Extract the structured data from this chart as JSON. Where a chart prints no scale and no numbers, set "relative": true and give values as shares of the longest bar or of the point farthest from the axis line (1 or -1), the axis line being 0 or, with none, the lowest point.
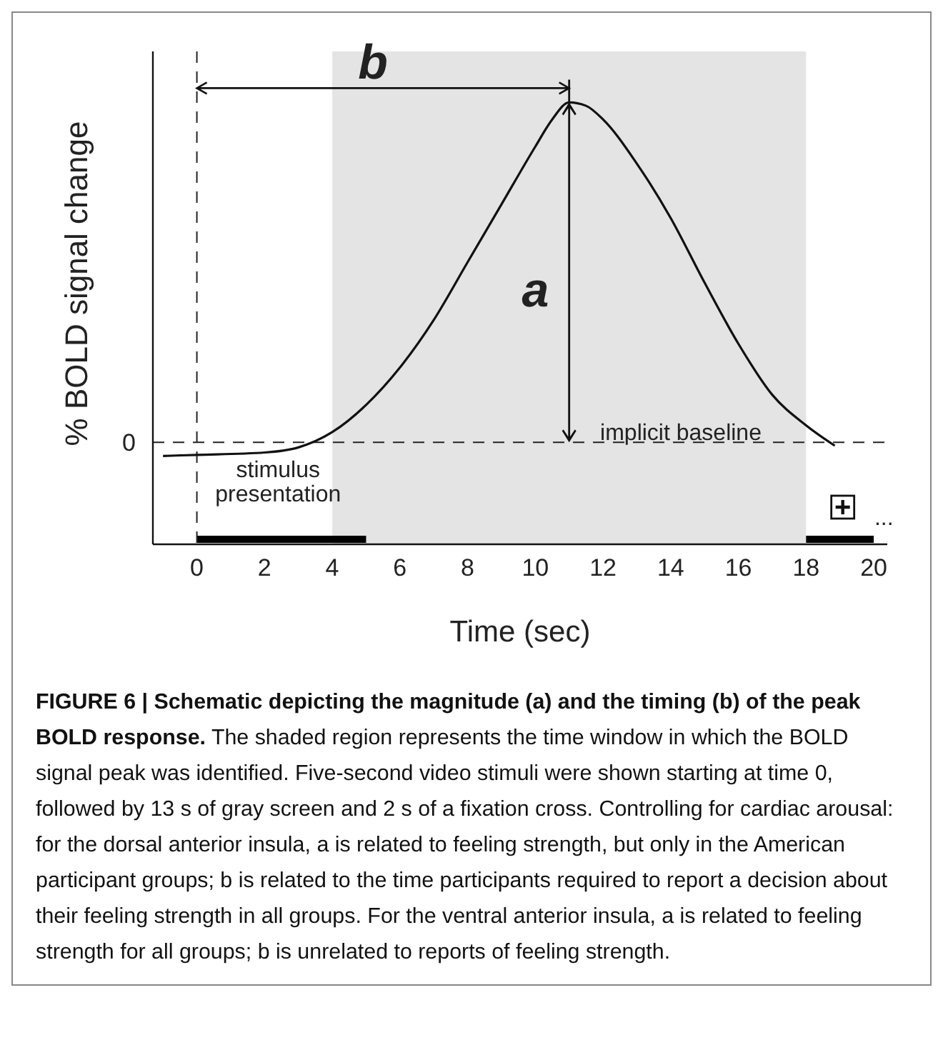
{
  "chart_data": {
    "type": "line",
    "relative": true,
    "title": "FIGURE 6 | Schematic depicting the magnitude (a) and the timing (b) of the peak BOLD response.",
    "xlabel": "Time (sec)",
    "ylabel": "% BOLD signal change",
    "x": [
      -1,
      0,
      2,
      3,
      4,
      5,
      6,
      7,
      8,
      9,
      10,
      10.5,
      11,
      11.5,
      12,
      13,
      14,
      15,
      16,
      17,
      18,
      18.85
    ],
    "series": [
      {
        "color": "#111111",
        "values": [
          -0.04,
          -0.037,
          -0.03,
          -0.015,
          0.03,
          0.11,
          0.22,
          0.36,
          0.53,
          0.7,
          0.87,
          0.95,
          1.0,
          0.99,
          0.95,
          0.82,
          0.66,
          0.47,
          0.29,
          0.14,
          0.05,
          -0.01
        ]
      }
    ],
    "xlim": [
      -1.3,
      20.4
    ],
    "xticks": [
      0,
      2,
      4,
      6,
      8,
      10,
      12,
      14,
      16,
      18,
      20
    ],
    "ref_lines": [
      {
        "axis": "y",
        "value": 0,
        "label": "0",
        "line_style": "dashed"
      },
      {
        "axis": "x",
        "value": 0,
        "line_style": "dashed"
      }
    ],
    "bands": [
      {
        "axis": "x",
        "from": 4,
        "to": 18,
        "color": "#e4e4e4"
      }
    ],
    "annotations": [
      "b",
      "a",
      "implicit baseline",
      "stimulus presentation",
      "...",
      "The shaded region represents the time window in which the BOLD signal peak was identified. Five-second video stimuli were shown starting at time 0, followed by 13 s of gray screen and 2 s of a fixation cross. Controlling for cardiac arousal: for the dorsal anterior insula, a is related to feeling strength, but only in the American participant groups; b is related to the time participants required to report a decision about their feeling strength in all groups. For the ventral anterior insula, a is related to feeling strength for all groups; b is unrelated to reports of feeling strength."
    ]
  }
}
